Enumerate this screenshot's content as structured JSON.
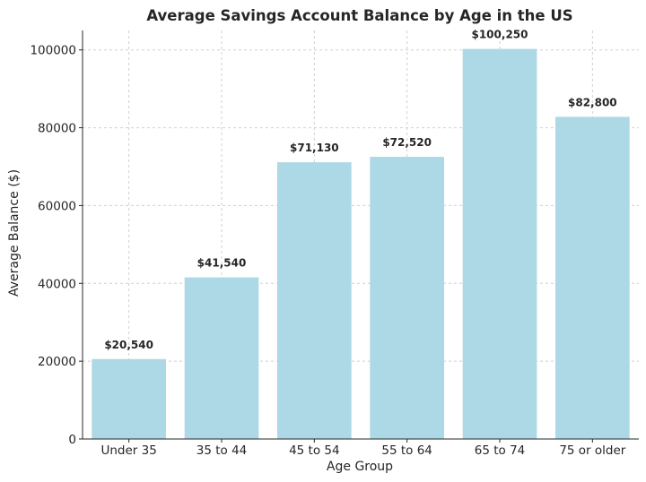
{
  "chart_data": {
    "type": "bar",
    "title": "Average Savings Account Balance by Age in the US",
    "xlabel": "Age Group",
    "ylabel": "Average Balance ($)",
    "categories": [
      "Under 35",
      "35 to 44",
      "45 to 54",
      "55 to 64",
      "65 to 74",
      "75 or older"
    ],
    "values": [
      20540,
      41540,
      71130,
      72520,
      100250,
      82800
    ],
    "data_labels": [
      "$20,540",
      "$41,540",
      "$71,130",
      "$72,520",
      "$100,250",
      "$82,800"
    ],
    "yticks": [
      0,
      20000,
      40000,
      60000,
      80000,
      100000
    ],
    "ylim": [
      0,
      105000
    ],
    "grid": true,
    "bar_color": "#add8e6"
  }
}
